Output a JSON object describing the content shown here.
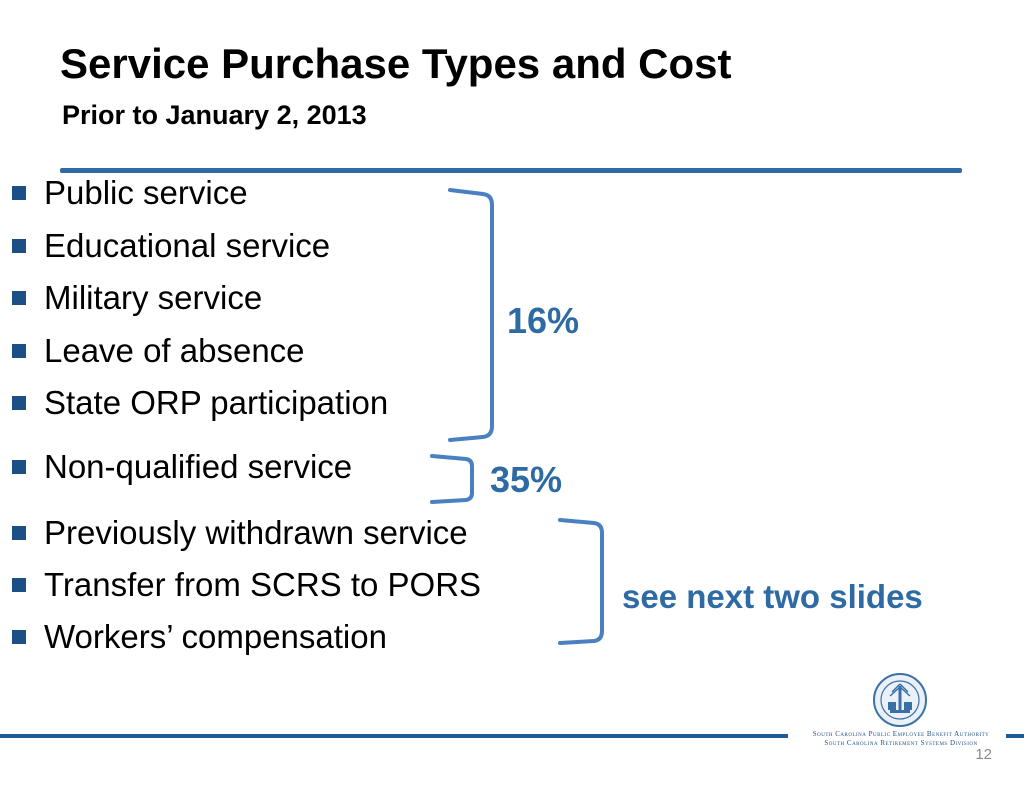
{
  "slide": {
    "title": "Service Purchase Types and Cost",
    "subtitle": "Prior to January 2, 2013",
    "page_number": "12"
  },
  "groups": [
    {
      "items": [
        "Public service",
        "Educational service",
        "Military service",
        "Leave of absence",
        "State ORP participation"
      ],
      "label": "16%"
    },
    {
      "items": [
        "Non-qualified service"
      ],
      "label": "35%"
    },
    {
      "items": [
        "Previously withdrawn service",
        "Transfer from SCRS to PORS",
        "Workers’ compensation"
      ],
      "label": "see next two slides"
    }
  ],
  "footer": {
    "org_line_1": "South Carolina Public Employee Benefit Authority",
    "org_line_2": "South Carolina Retirement Systems Division",
    "seal_icon": "state-seal-icon"
  },
  "colors": {
    "accent": "#2e6aa3",
    "bullet": "#1c4f86",
    "footer_rule": "#1f5b96"
  }
}
